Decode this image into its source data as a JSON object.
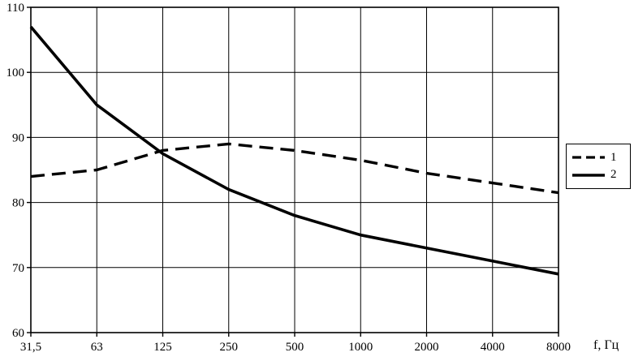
{
  "chart_data": {
    "type": "line",
    "categories": [
      "31,5",
      "63",
      "125",
      "250",
      "500",
      "1000",
      "2000",
      "4000",
      "8000"
    ],
    "series": [
      {
        "name": "1",
        "style": "dashed",
        "values": [
          84,
          85,
          88,
          89,
          88,
          86.5,
          84.5,
          83,
          81.5
        ]
      },
      {
        "name": "2",
        "style": "solid",
        "values": [
          107,
          95,
          87.5,
          82,
          78,
          75,
          73,
          71,
          69
        ]
      }
    ],
    "title": "",
    "xlabel": "f, Гц",
    "ylabel": "",
    "ylim": [
      60,
      110
    ],
    "ytick_step": 10,
    "yticks": [
      "60",
      "70",
      "80",
      "90",
      "100",
      "110"
    ],
    "grid": true,
    "legend_position": "right"
  },
  "colors": {
    "line": "#000000",
    "background": "#ffffff"
  }
}
